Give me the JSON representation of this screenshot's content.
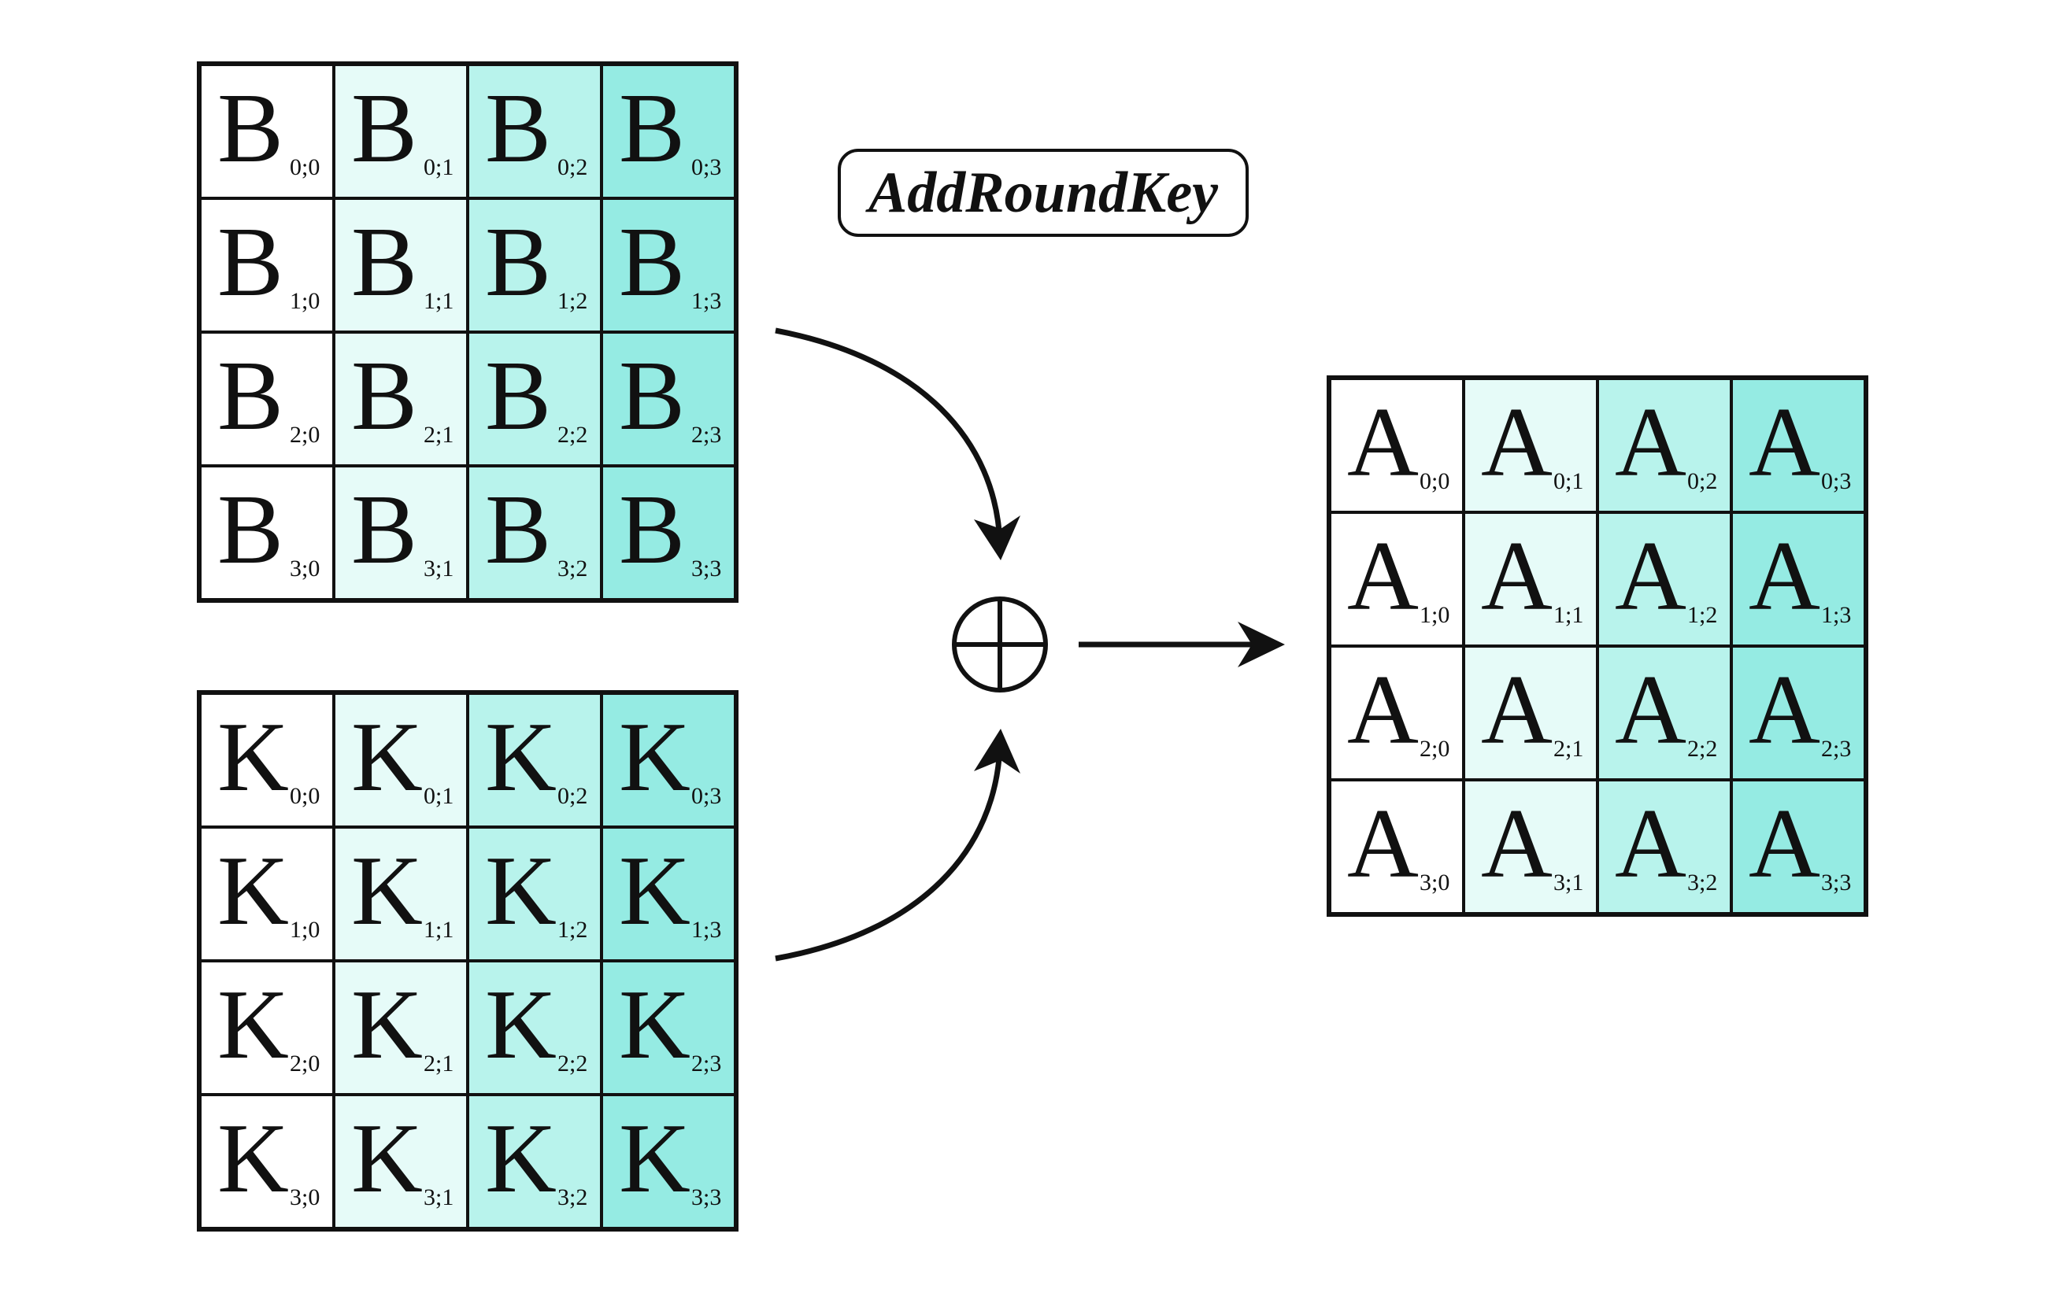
{
  "title": "AddRoundKey",
  "operator_symbol": "⊕",
  "colors": {
    "column_0": "#ffffff",
    "column_1": "#e6fbf8",
    "column_2": "#b8f3ec",
    "column_3": "#95ebe3",
    "stroke": "#111111"
  },
  "matrices": {
    "state_input": {
      "letter": "B",
      "cells": [
        [
          "0;0",
          "0;1",
          "0;2",
          "0;3"
        ],
        [
          "1;0",
          "1;1",
          "1;2",
          "1;3"
        ],
        [
          "2;0",
          "2;1",
          "2;2",
          "2;3"
        ],
        [
          "3;0",
          "3;1",
          "3;2",
          "3;3"
        ]
      ]
    },
    "round_key": {
      "letter": "K",
      "cells": [
        [
          "0;0",
          "0;1",
          "0;2",
          "0;3"
        ],
        [
          "1;0",
          "1;1",
          "1;2",
          "1;3"
        ],
        [
          "2;0",
          "2;1",
          "2;2",
          "2;3"
        ],
        [
          "3;0",
          "3;1",
          "3;2",
          "3;3"
        ]
      ]
    },
    "state_output": {
      "letter": "A",
      "cells": [
        [
          "0;0",
          "0;1",
          "0;2",
          "0;3"
        ],
        [
          "1;0",
          "1;1",
          "1;2",
          "1;3"
        ],
        [
          "2;0",
          "2;1",
          "2;2",
          "2;3"
        ],
        [
          "3;0",
          "3;1",
          "3;2",
          "3;3"
        ]
      ]
    }
  }
}
